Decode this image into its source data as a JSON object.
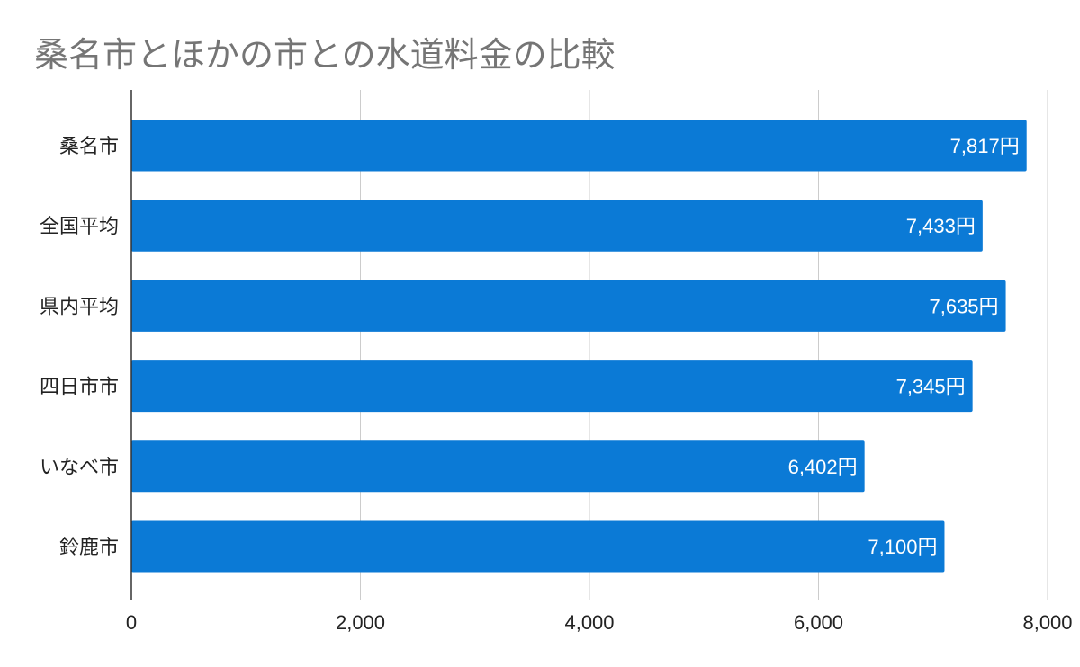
{
  "chart_data": {
    "type": "bar",
    "orientation": "horizontal",
    "title": "桑名市とほかの市との水道料金の比較",
    "categories": [
      "桑名市",
      "全国平均",
      "県内平均",
      "四日市市",
      "いなべ市",
      "鈴鹿市"
    ],
    "values": [
      7817,
      7433,
      7635,
      7345,
      6402,
      7100
    ],
    "value_labels": [
      "7,817円",
      "7,433円",
      "7,635円",
      "7,345円",
      "6,402円",
      "7,100円"
    ],
    "xlim": [
      0,
      8000
    ],
    "xticks": [
      0,
      2000,
      4000,
      6000,
      8000
    ],
    "xtick_labels": [
      "0",
      "2,000",
      "4,000",
      "6,000",
      "8,000"
    ],
    "xlabel": "",
    "ylabel": "",
    "grid": true,
    "bar_color": "#0b7ad6",
    "grid_color": "#cccccc"
  }
}
